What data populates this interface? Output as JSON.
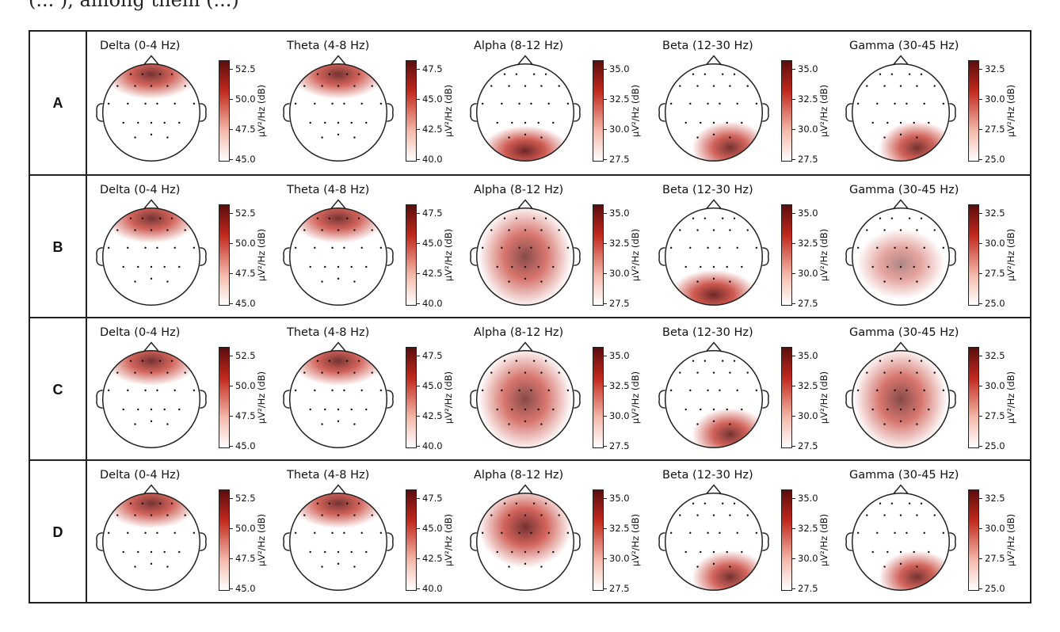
{
  "caption_fragment": "(... ), among them (...)",
  "rows": [
    {
      "label": "A",
      "panels": [
        {
          "title": "Delta (0-4 Hz)",
          "ticks": [
            "52.5",
            "50.0",
            "47.5",
            "45.0"
          ],
          "hot": "front"
        },
        {
          "title": "Theta (4-8 Hz)",
          "ticks": [
            "47.5",
            "45.0",
            "42.5",
            "40.0"
          ],
          "hot": "front"
        },
        {
          "title": "Alpha (8-12 Hz)",
          "ticks": [
            "35.0",
            "32.5",
            "30.0",
            "27.5"
          ],
          "hot": "back"
        },
        {
          "title": "Beta (12-30 Hz)",
          "ticks": [
            "35.0",
            "32.5",
            "30.0",
            "27.5"
          ],
          "hot": "back-right"
        },
        {
          "title": "Gamma (30-45 Hz)",
          "ticks": [
            "32.5",
            "30.0",
            "27.5",
            "25.0"
          ],
          "hot": "back-right"
        }
      ]
    },
    {
      "label": "B",
      "panels": [
        {
          "title": "Delta (0-4 Hz)",
          "ticks": [
            "52.5",
            "50.0",
            "47.5",
            "45.0"
          ],
          "hot": "front"
        },
        {
          "title": "Theta (4-8 Hz)",
          "ticks": [
            "47.5",
            "45.0",
            "42.5",
            "40.0"
          ],
          "hot": "front"
        },
        {
          "title": "Alpha (8-12 Hz)",
          "ticks": [
            "35.0",
            "32.5",
            "30.0",
            "27.5"
          ],
          "hot": "all"
        },
        {
          "title": "Beta (12-30 Hz)",
          "ticks": [
            "35.0",
            "32.5",
            "30.0",
            "27.5"
          ],
          "hot": "back"
        },
        {
          "title": "Gamma (30-45 Hz)",
          "ticks": [
            "32.5",
            "30.0",
            "27.5",
            "25.0"
          ],
          "hot": "mid"
        }
      ]
    },
    {
      "label": "C",
      "panels": [
        {
          "title": "Delta (0-4 Hz)",
          "ticks": [
            "52.5",
            "50.0",
            "47.5",
            "45.0"
          ],
          "hot": "front"
        },
        {
          "title": "Theta (4-8 Hz)",
          "ticks": [
            "47.5",
            "45.0",
            "42.5",
            "40.0"
          ],
          "hot": "front"
        },
        {
          "title": "Alpha (8-12 Hz)",
          "ticks": [
            "35.0",
            "32.5",
            "30.0",
            "27.5"
          ],
          "hot": "all"
        },
        {
          "title": "Beta (12-30 Hz)",
          "ticks": [
            "35.0",
            "32.5",
            "30.0",
            "27.5"
          ],
          "hot": "back-right"
        },
        {
          "title": "Gamma (30-45 Hz)",
          "ticks": [
            "32.5",
            "30.0",
            "27.5",
            "25.0"
          ],
          "hot": "all"
        }
      ]
    },
    {
      "label": "D",
      "panels": [
        {
          "title": "Delta (0-4 Hz)",
          "ticks": [
            "52.5",
            "50.0",
            "47.5",
            "45.0"
          ],
          "hot": "front"
        },
        {
          "title": "Theta (4-8 Hz)",
          "ticks": [
            "47.5",
            "45.0",
            "42.5",
            "40.0"
          ],
          "hot": "front"
        },
        {
          "title": "Alpha (8-12 Hz)",
          "ticks": [
            "35.0",
            "32.5",
            "30.0",
            "27.5"
          ],
          "hot": "front-all"
        },
        {
          "title": "Beta (12-30 Hz)",
          "ticks": [
            "35.0",
            "32.5",
            "30.0",
            "27.5"
          ],
          "hot": "back-right"
        },
        {
          "title": "Gamma (30-45 Hz)",
          "ticks": [
            "32.5",
            "30.0",
            "27.5",
            "25.0"
          ],
          "hot": "back-right"
        }
      ]
    }
  ],
  "colorbar_label": "µV²/Hz (dB)",
  "colors": {
    "hot": "#c0281c",
    "dark": "#5a0e0e",
    "cold": "#ffffff"
  }
}
